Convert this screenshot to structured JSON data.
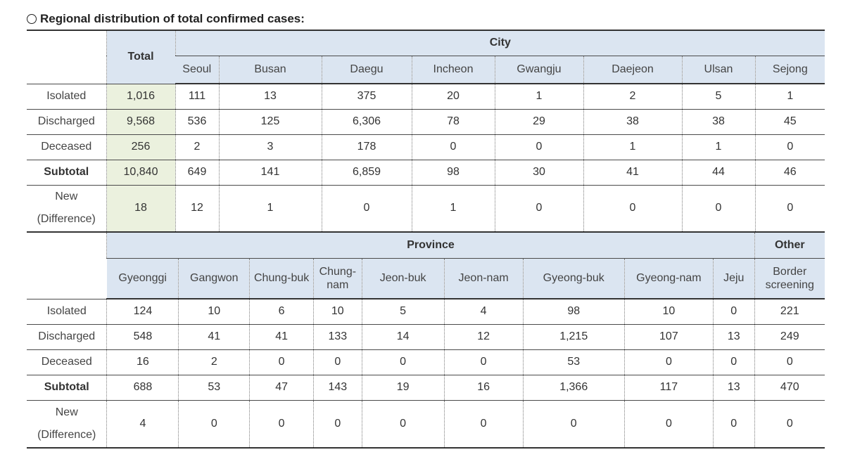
{
  "caption": "Regional distribution of total confirmed cases:",
  "city_table": {
    "group_label": "City",
    "total_label": "Total",
    "columns": [
      "Seoul",
      "Busan",
      "Daegu",
      "Incheon",
      "Gwangju",
      "Daejeon",
      "Ulsan",
      "Sejong"
    ],
    "rows": [
      {
        "label": "Isolated",
        "total": "1,016",
        "values": [
          "111",
          "13",
          "375",
          "20",
          "1",
          "2",
          "5",
          "1"
        ]
      },
      {
        "label": "Discharged",
        "total": "9,568",
        "values": [
          "536",
          "125",
          "6,306",
          "78",
          "29",
          "38",
          "38",
          "45"
        ]
      },
      {
        "label": "Deceased",
        "total": "256",
        "values": [
          "2",
          "3",
          "178",
          "0",
          "0",
          "1",
          "1",
          "0"
        ]
      },
      {
        "label": "Subtotal",
        "total": "10,840",
        "values": [
          "649",
          "141",
          "6,859",
          "98",
          "30",
          "41",
          "44",
          "46"
        ]
      },
      {
        "label": "New (Difference)",
        "total": "18",
        "values": [
          "12",
          "1",
          "0",
          "1",
          "0",
          "0",
          "0",
          "0"
        ]
      }
    ]
  },
  "province_table": {
    "group_label": "Province",
    "other_label": "Other",
    "columns": [
      "Gyeonggi",
      "Gangwon",
      "Chung-buk",
      "Chung-nam",
      "Jeon-buk",
      "Jeon-nam",
      "Gyeong-buk",
      "Gyeong-nam",
      "Jeju",
      "Border screening"
    ],
    "rows": [
      {
        "label": "Isolated",
        "values": [
          "124",
          "10",
          "6",
          "10",
          "5",
          "4",
          "98",
          "10",
          "0",
          "221"
        ]
      },
      {
        "label": "Discharged",
        "values": [
          "548",
          "41",
          "41",
          "133",
          "14",
          "12",
          "1,215",
          "107",
          "13",
          "249"
        ]
      },
      {
        "label": "Deceased",
        "values": [
          "16",
          "2",
          "0",
          "0",
          "0",
          "0",
          "53",
          "0",
          "0",
          "0"
        ]
      },
      {
        "label": "Subtotal",
        "values": [
          "688",
          "53",
          "47",
          "143",
          "19",
          "16",
          "1,366",
          "117",
          "13",
          "470"
        ]
      },
      {
        "label": "New (Difference)",
        "values": [
          "4",
          "0",
          "0",
          "0",
          "0",
          "0",
          "0",
          "0",
          "0",
          "0"
        ]
      }
    ]
  }
}
